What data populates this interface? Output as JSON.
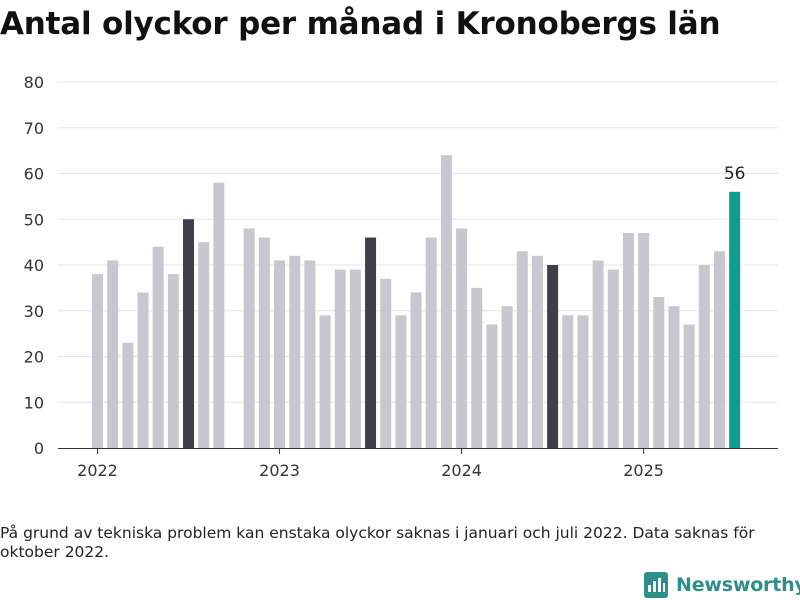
{
  "title": "Antal olyckor per månad i Kronobergs län",
  "footnote": "På grund av tekniska problem kan enstaka olyckor saknas i januari och juli 2022. Data saknas för oktober 2022.",
  "brand": {
    "name": "Newsworthy",
    "icon": "newsworthy-logo-icon"
  },
  "colors": {
    "default": "#c8c7cf",
    "july": "#3f3e4a",
    "latest": "#0f9d8f",
    "grid": "#e6e6e6",
    "axis": "#333333"
  },
  "chart_data": {
    "type": "bar",
    "title": "Antal olyckor per månad i Kronobergs län",
    "xlabel": "",
    "ylabel": "",
    "ylim": [
      0,
      80
    ],
    "yticks": [
      "0",
      "10",
      "20",
      "30",
      "40",
      "50",
      "60",
      "70",
      "80"
    ],
    "xticks": [
      "2022",
      "2023",
      "2024",
      "2025"
    ],
    "grid": true,
    "series": [
      {
        "x": [
          "2022-01",
          "2022-02",
          "2022-03",
          "2022-04",
          "2022-05",
          "2022-06",
          "2022-07",
          "2022-08",
          "2022-09",
          "2022-10",
          "2022-11",
          "2022-12",
          "2023-01",
          "2023-02",
          "2023-03",
          "2023-04",
          "2023-05",
          "2023-06",
          "2023-07",
          "2023-08",
          "2023-09",
          "2023-10",
          "2023-11",
          "2023-12",
          "2024-01",
          "2024-02",
          "2024-03",
          "2024-04",
          "2024-05",
          "2024-06",
          "2024-07",
          "2024-08",
          "2024-09",
          "2024-10",
          "2024-11",
          "2024-12",
          "2025-01",
          "2025-02",
          "2025-03",
          "2025-04",
          "2025-05",
          "2025-06",
          "2025-07"
        ],
        "values": [
          38,
          41,
          23,
          34,
          44,
          38,
          50,
          45,
          58,
          null,
          48,
          46,
          41,
          42,
          41,
          29,
          39,
          39,
          46,
          37,
          29,
          34,
          46,
          64,
          48,
          35,
          27,
          31,
          43,
          42,
          40,
          29,
          29,
          41,
          39,
          47,
          47,
          33,
          31,
          27,
          40,
          43,
          56
        ],
        "highlight": {
          "2022-07": "july",
          "2023-07": "july",
          "2024-07": "july",
          "2025-07": "latest"
        }
      }
    ],
    "annotations": [
      {
        "x": "2025-07",
        "text": "56"
      }
    ]
  }
}
